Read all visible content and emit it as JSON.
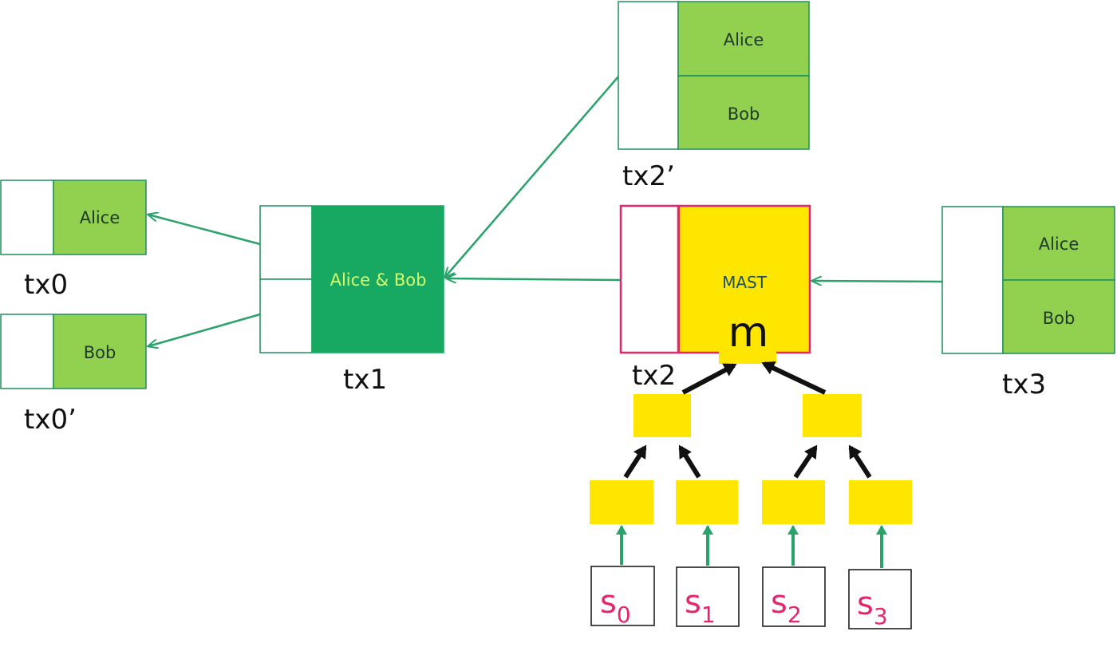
{
  "colors": {
    "light_green": "#92d050",
    "dark_green": "#17a862",
    "yellow": "#ffe600",
    "pink_border": "#e8246e",
    "arrow_green": "#2aa36b",
    "arrow_black": "#111111",
    "box_border": "#1e8f5a"
  },
  "tx0": {
    "label": "tx0",
    "output": "Alice"
  },
  "tx0p": {
    "label": "tx0’",
    "output": "Bob"
  },
  "tx1": {
    "label": "tx1",
    "output": "Alice & Bob"
  },
  "tx2p": {
    "label": "tx2’",
    "outputs": [
      "Alice",
      "Bob"
    ]
  },
  "tx2": {
    "label": "tx2",
    "output": "MAST",
    "root": "m"
  },
  "tx3": {
    "label": "tx3",
    "outputs": [
      "Alice",
      "Bob"
    ]
  },
  "scripts": [
    {
      "base": "s",
      "sub": "0"
    },
    {
      "base": "s",
      "sub": "1"
    },
    {
      "base": "s",
      "sub": "2"
    },
    {
      "base": "s",
      "sub": "3"
    }
  ]
}
